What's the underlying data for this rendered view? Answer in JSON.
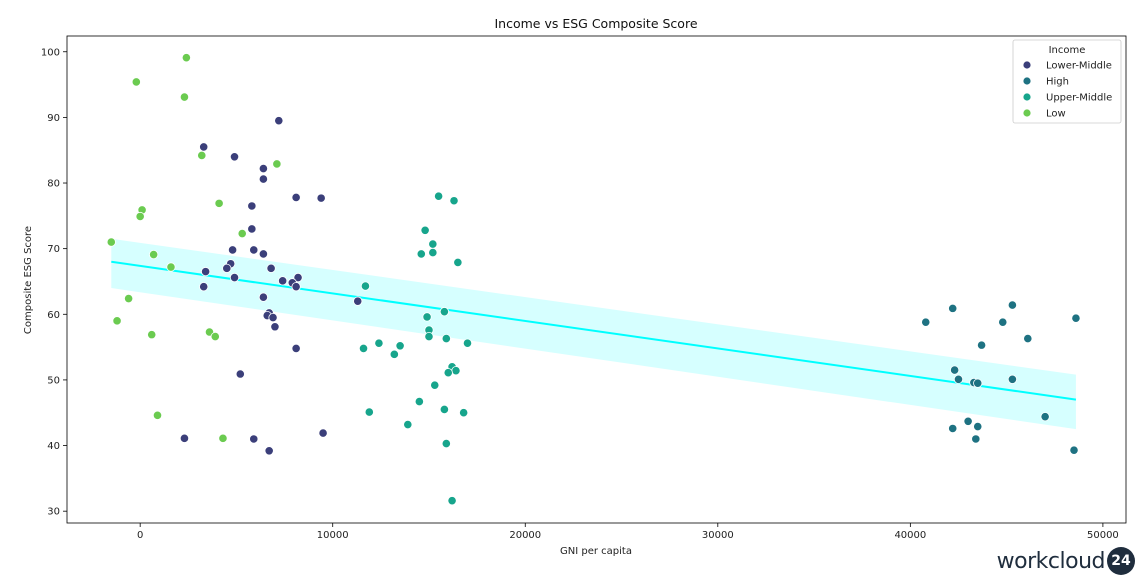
{
  "chart_data": {
    "type": "scatter",
    "title": "Income vs ESG Composite Score",
    "xlabel": "GNI per capita",
    "ylabel": "Composite ESG Score",
    "xlim": [
      -3800,
      51200
    ],
    "ylim": [
      28.2,
      102.4
    ],
    "xticks": [
      0,
      10000,
      20000,
      30000,
      40000,
      50000
    ],
    "yticks": [
      30,
      40,
      50,
      60,
      70,
      80,
      90,
      100
    ],
    "legend_title": "Income",
    "legend_position": "top-right",
    "series": [
      {
        "name": "Lower-Middle",
        "color": "#3b3f7a",
        "points": [
          [
            7200,
            89.5
          ],
          [
            3300,
            85.5
          ],
          [
            4900,
            84
          ],
          [
            6400,
            82.2
          ],
          [
            6400,
            80.6
          ],
          [
            8100,
            77.8
          ],
          [
            9400,
            77.7
          ],
          [
            5800,
            76.5
          ],
          [
            5800,
            73
          ],
          [
            4800,
            69.8
          ],
          [
            5900,
            69.8
          ],
          [
            6400,
            69.2
          ],
          [
            4700,
            67.7
          ],
          [
            4500,
            67
          ],
          [
            6800,
            67
          ],
          [
            3400,
            66.5
          ],
          [
            4900,
            65.6
          ],
          [
            8200,
            65.6
          ],
          [
            7400,
            65.1
          ],
          [
            7900,
            64.8
          ],
          [
            8100,
            64.2
          ],
          [
            3300,
            64.2
          ],
          [
            6400,
            62.6
          ],
          [
            11300,
            62
          ],
          [
            6700,
            60.2
          ],
          [
            6600,
            59.8
          ],
          [
            6900,
            59.5
          ],
          [
            7000,
            58.1
          ],
          [
            8100,
            54.8
          ],
          [
            5200,
            50.9
          ],
          [
            9500,
            41.9
          ],
          [
            2300,
            41.1
          ],
          [
            5900,
            41
          ],
          [
            6700,
            39.2
          ]
        ]
      },
      {
        "name": "High",
        "color": "#1e7282",
        "points": [
          [
            40800,
            58.8
          ],
          [
            42200,
            60.9
          ],
          [
            45300,
            61.4
          ],
          [
            44800,
            58.8
          ],
          [
            48600,
            59.4
          ],
          [
            46100,
            56.3
          ],
          [
            43700,
            55.3
          ],
          [
            42300,
            51.5
          ],
          [
            42500,
            50.1
          ],
          [
            43300,
            49.6
          ],
          [
            43500,
            49.5
          ],
          [
            45300,
            50.1
          ],
          [
            47000,
            44.4
          ],
          [
            43000,
            43.7
          ],
          [
            42200,
            42.6
          ],
          [
            43500,
            42.9
          ],
          [
            43400,
            41
          ],
          [
            48500,
            39.3
          ]
        ]
      },
      {
        "name": "Upper-Middle",
        "color": "#17a58c",
        "points": [
          [
            15500,
            78
          ],
          [
            16300,
            77.3
          ],
          [
            14800,
            72.8
          ],
          [
            15200,
            70.7
          ],
          [
            15200,
            69.4
          ],
          [
            14600,
            69.2
          ],
          [
            16500,
            67.9
          ],
          [
            11700,
            64.3
          ],
          [
            15800,
            60.4
          ],
          [
            14900,
            59.6
          ],
          [
            15000,
            57.6
          ],
          [
            15000,
            56.6
          ],
          [
            15900,
            56.3
          ],
          [
            17000,
            55.6
          ],
          [
            12400,
            55.6
          ],
          [
            13500,
            55.2
          ],
          [
            11600,
            54.8
          ],
          [
            13200,
            53.9
          ],
          [
            16200,
            52
          ],
          [
            16400,
            51.4
          ],
          [
            16000,
            51.1
          ],
          [
            15300,
            49.2
          ],
          [
            14500,
            46.7
          ],
          [
            15800,
            45.5
          ],
          [
            11900,
            45.1
          ],
          [
            16800,
            45
          ],
          [
            13900,
            43.2
          ],
          [
            15900,
            40.3
          ],
          [
            16200,
            31.6
          ]
        ]
      },
      {
        "name": "Low",
        "color": "#6bcb50",
        "points": [
          [
            2400,
            99.1
          ],
          [
            -200,
            95.4
          ],
          [
            2300,
            93.1
          ],
          [
            3200,
            84.2
          ],
          [
            7100,
            82.9
          ],
          [
            4100,
            76.9
          ],
          [
            100,
            75.9
          ],
          [
            0,
            74.9
          ],
          [
            5300,
            72.3
          ],
          [
            -1500,
            71
          ],
          [
            700,
            69.1
          ],
          [
            1600,
            67.2
          ],
          [
            -600,
            62.4
          ],
          [
            -1200,
            59
          ],
          [
            3600,
            57.3
          ],
          [
            3900,
            56.6
          ],
          [
            600,
            56.9
          ],
          [
            900,
            44.6
          ],
          [
            4300,
            41.1
          ]
        ]
      }
    ],
    "regression": {
      "color": "#00ffff",
      "x": [
        -1500,
        48600
      ],
      "y": [
        68,
        47
      ],
      "ci_low": [
        64,
        42.5
      ],
      "ci_high": [
        71.5,
        50.8
      ]
    }
  },
  "logo": {
    "text": "workcloud",
    "badge": "24"
  }
}
